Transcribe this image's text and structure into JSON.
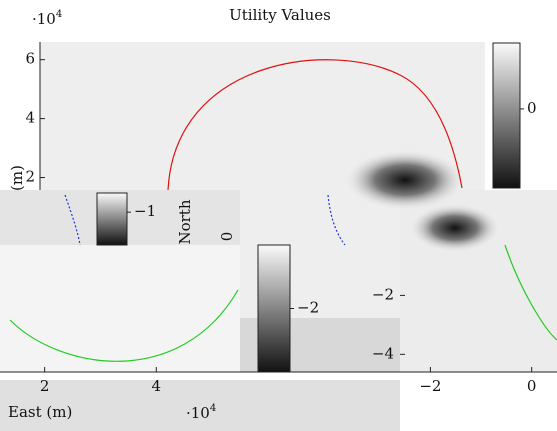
{
  "chart_data": [
    {
      "type": "heatmap",
      "title": "Utility Values",
      "multiplier": {
        "base": "·10",
        "exponent": "4"
      },
      "y_label": "(m)",
      "x_label": "East (m)",
      "ylim": [
        -4.6,
        6.6
      ],
      "yticks": [
        {
          "value": -4,
          "label": "−4"
        },
        {
          "value": -2,
          "label": "−2"
        },
        0,
        2,
        4,
        6
      ],
      "xlim": [
        1.2,
        5.5
      ],
      "xticks": [
        2,
        4
      ],
      "colorbars": [
        {
          "clim": [
            -1.2,
            1
          ],
          "ticks": [
            0
          ]
        },
        {
          "clim": [
            -1.6,
            -0.65
          ],
          "ticks": [
            {
              "value": -1,
              "label": "−1"
            }
          ]
        },
        {
          "clim": [
            -2.8,
            -1.2
          ],
          "ticks": [
            {
              "value": -2,
              "label": "−2"
            }
          ]
        }
      ]
    },
    {
      "type": "heatmap",
      "y_label": "North",
      "multiplier": {
        "base": "·10",
        "exponent": "4"
      },
      "xlim": [
        -2.6,
        0.5
      ],
      "xticks": [
        {
          "value": -2,
          "label": "−2"
        },
        0
      ]
    }
  ]
}
